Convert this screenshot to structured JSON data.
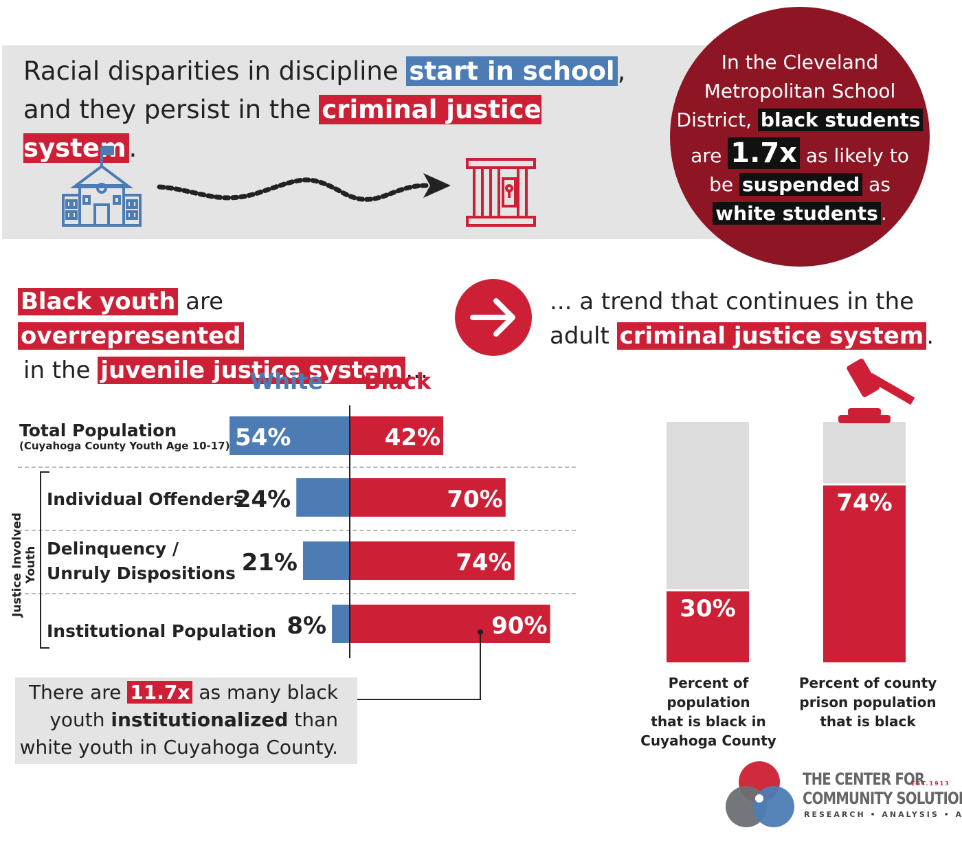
{
  "headline": {
    "line1_a": "Racial disparities in discipline ",
    "line1_hl": "start in school",
    "line1_b": ",",
    "line2_a": "and they persist in the ",
    "line2_hl": "criminal justice system",
    "line2_b": "."
  },
  "icons": [
    "school-icon",
    "dotted-arrow-icon",
    "jail-cell-icon",
    "right-arrow-icon",
    "gavel-icon"
  ],
  "circle": {
    "l1": "In the Cleveland",
    "l2": "Metropolitan School",
    "l3_a": "District, ",
    "l3_hl": "black students",
    "l4_a": "are ",
    "l4_hl": "1.7x",
    "l4_b": " as likely to",
    "l5_a": "be ",
    "l5_hl": "suspended",
    "l5_b": " as",
    "l6_hl": "white students",
    "l6_b": "."
  },
  "left_statement": {
    "hl1": "Black youth",
    "t1": " are ",
    "hl2": "overrepresented",
    "t2": "in the ",
    "hl3": "juvenile justice system",
    "t3": "..."
  },
  "right_statement": {
    "t1": "... a trend that continues in the",
    "t2": "adult ",
    "hl": "criminal justice system",
    "t3": "."
  },
  "side_label": "Justice Involved Youth",
  "note": {
    "t1": "There are ",
    "hl": "11.7x",
    "t2": " as many black",
    "t3": "youth ",
    "bold": "institutionalized",
    "t4": " than",
    "t5": "white youth in Cuyahoga County."
  },
  "logo": {
    "line1": "THE CENTER FOR",
    "line2": "COMMUNITY SOLUTIONS",
    "est": "EST.1913",
    "tagline": "RESEARCH • ANALYSIS • ACTION"
  },
  "colors": {
    "white": "#4d7cb4",
    "black": "#cd1f35",
    "dark_red": "#8e1524",
    "grey": "#dcdcdc"
  },
  "chart_data": [
    {
      "type": "bar",
      "orientation": "horizontal-diverging",
      "legend": [
        "White",
        "Black"
      ],
      "rows": [
        {
          "label": "Total Population",
          "sublabel": "(Cuyahoga County Youth Age 10-17)",
          "white": 54,
          "black": 42,
          "white_label": "54%",
          "black_label": "42%"
        },
        {
          "label": "Individual Offenders",
          "white": 24,
          "black": 70,
          "white_label": "24%",
          "black_label": "70%"
        },
        {
          "label_line1": "Delinquency /",
          "label_line2": "Unruly Dispositions",
          "white": 21,
          "black": 74,
          "white_label": "21%",
          "black_label": "74%"
        },
        {
          "label": "Institutional Population",
          "white": 8,
          "black": 90,
          "white_label": "8%",
          "black_label": "90%"
        }
      ],
      "unit": "%"
    },
    {
      "type": "bar",
      "orientation": "vertical-stacked",
      "ylim": [
        0,
        100
      ],
      "bars": [
        {
          "value": 30,
          "label": "30%",
          "caption_l1": "Percent of population",
          "caption_l2": "that is black in",
          "caption_l3": "Cuyahoga County"
        },
        {
          "value": 74,
          "label": "74%",
          "caption_l1": "Percent of county",
          "caption_l2": "prison population",
          "caption_l3": "that is black"
        }
      ]
    }
  ]
}
